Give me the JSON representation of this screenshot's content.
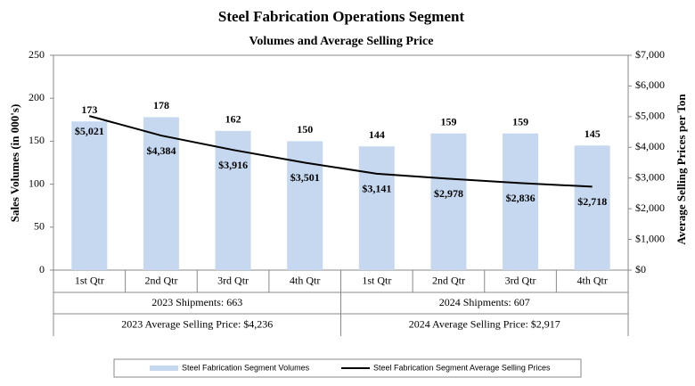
{
  "chart_data": {
    "type": "bar",
    "title": "Steel Fabrication Operations Segment",
    "subtitle": "Volumes and Average Selling Price",
    "y_label": "Sales Volumes (in 000's)",
    "y2_label": "Average Selling Prices per Ton",
    "categories": [
      "1st Qtr",
      "2nd Qtr",
      "3rd Qtr",
      "4th Qtr",
      "1st Qtr",
      "2nd Qtr",
      "3rd Qtr",
      "4th Qtr"
    ],
    "series": [
      {
        "name": "Steel Fabrication Segment Volumes",
        "type": "bar",
        "color": "#c6d8f0",
        "values": [
          173,
          178,
          162,
          150,
          144,
          159,
          159,
          145
        ]
      },
      {
        "name": "Steel Fabrication Segment Average Selling Prices",
        "type": "line",
        "axis": "y2",
        "color": "#000000",
        "values": [
          5021,
          4384,
          3916,
          3501,
          3141,
          2978,
          2836,
          2718
        ],
        "value_labels": [
          "$5,021",
          "$4,384",
          "$3,916",
          "$3,501",
          "$3,141",
          "$2,978",
          "$2,836",
          "$2,718"
        ]
      }
    ],
    "groups": [
      {
        "shipments": "2023 Shipments: 663",
        "average_price": "2023 Average Selling Price: $4,236"
      },
      {
        "shipments": "2024 Shipments: 607",
        "average_price": "2024 Average Selling Price: $2,917"
      }
    ],
    "ylim": [
      0,
      250
    ],
    "yticks": [
      0,
      50,
      100,
      150,
      200,
      250
    ],
    "y2lim": [
      0,
      7000
    ],
    "y2ticks": [
      {
        "value": 0,
        "label": "$0"
      },
      {
        "value": 1000,
        "label": "$1,000"
      },
      {
        "value": 2000,
        "label": "$2,000"
      },
      {
        "value": 3000,
        "label": "$3,000"
      },
      {
        "value": 4000,
        "label": "$4,000"
      },
      {
        "value": 5000,
        "label": "$5,000"
      },
      {
        "value": 6000,
        "label": "$6,000"
      },
      {
        "value": 7000,
        "label": "$7,000"
      }
    ],
    "legend": "bottom"
  }
}
